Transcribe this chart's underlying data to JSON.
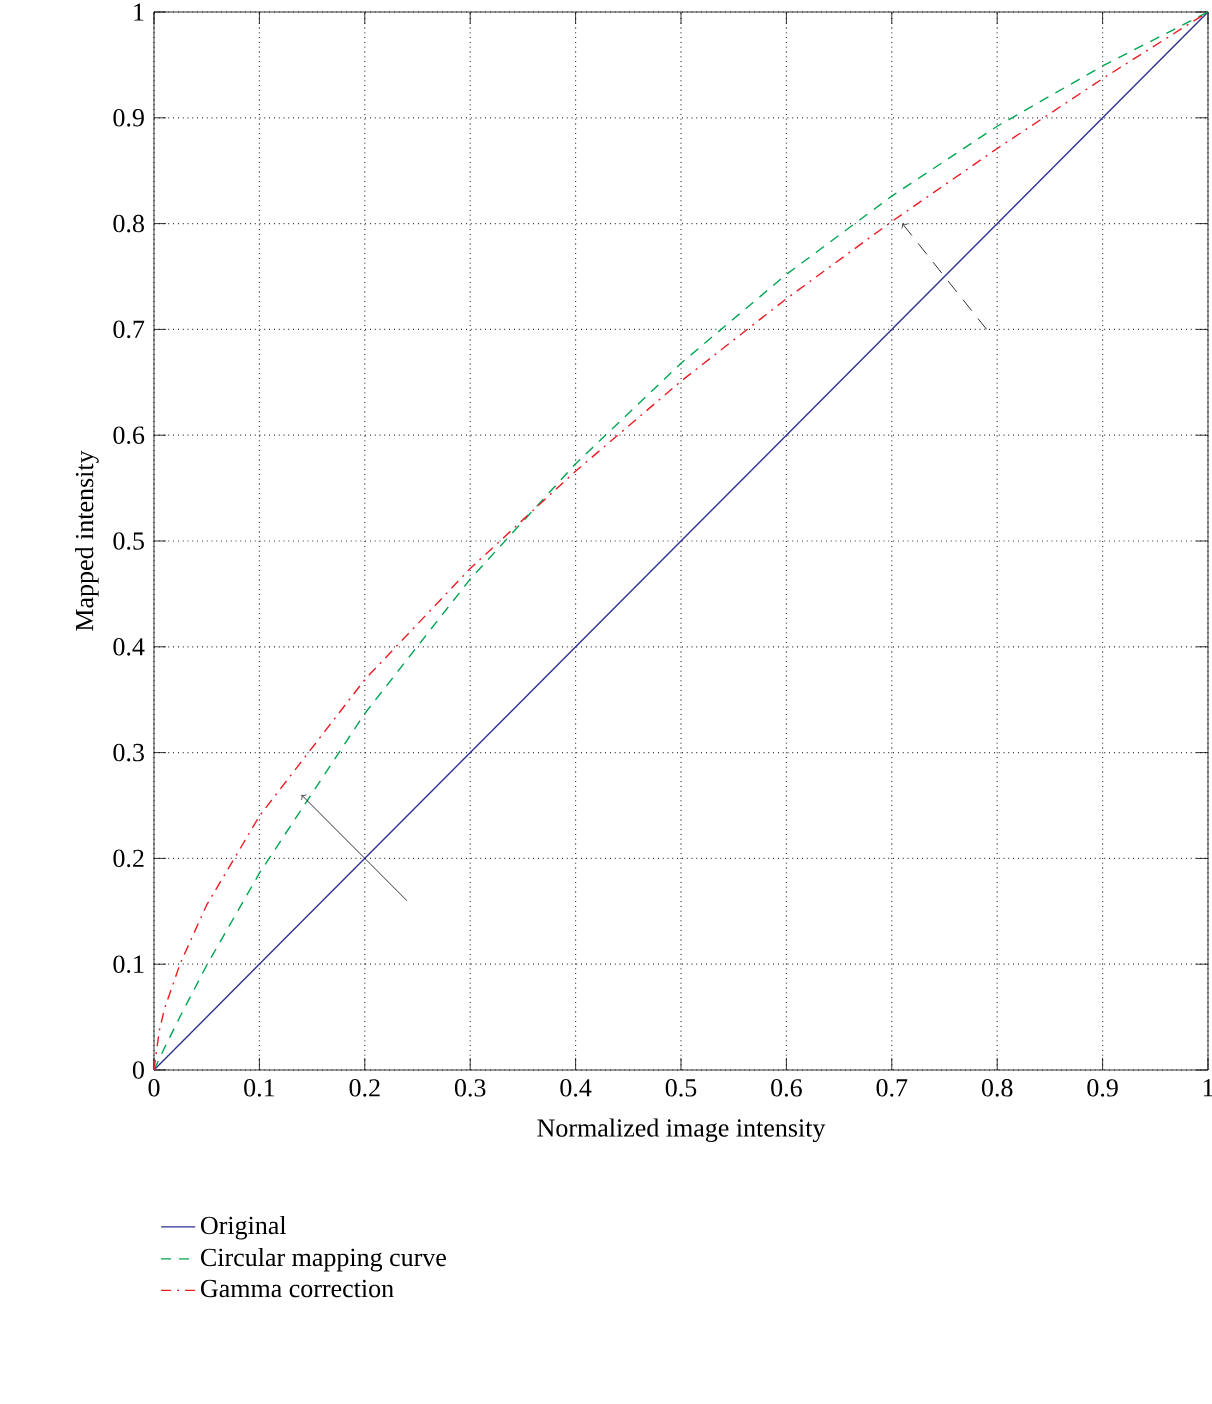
{
  "chart_data": {
    "type": "line",
    "xlabel": "Normalized image intensity",
    "ylabel": "Mapped intensity",
    "xlim": [
      0,
      1
    ],
    "ylim": [
      0,
      1
    ],
    "xticks": [
      0,
      0.1,
      0.2,
      0.3,
      0.4,
      0.5,
      0.6,
      0.7,
      0.8,
      0.9,
      1
    ],
    "yticks": [
      0,
      0.1,
      0.2,
      0.3,
      0.4,
      0.5,
      0.6,
      0.7,
      0.8,
      0.9,
      1
    ],
    "grid": true,
    "legend": "bottom",
    "marker": "none",
    "series": [
      {
        "name": "Original",
        "color": "#2e3192",
        "line_style": "solid",
        "x": [
          0,
          1
        ],
        "values": [
          0,
          1
        ]
      },
      {
        "name": "Circular mapping curve",
        "color": "#00a651",
        "line_style": "dashed",
        "x": [
          0,
          0.01,
          0.025,
          0.05,
          0.1,
          0.2,
          0.3,
          0.4,
          0.5,
          0.6,
          0.7,
          0.8,
          0.9,
          1
        ],
        "values": [
          0,
          0.021,
          0.051,
          0.099,
          0.186,
          0.337,
          0.464,
          0.573,
          0.668,
          0.752,
          0.826,
          0.892,
          0.949,
          1
        ]
      },
      {
        "name": "Gamma correction",
        "color": "#ed1c24",
        "line_style": "dashdot",
        "x": [
          0,
          0.005,
          0.01,
          0.025,
          0.05,
          0.1,
          0.2,
          0.3,
          0.4,
          0.5,
          0.6,
          0.7,
          0.8,
          0.9,
          1
        ],
        "values": [
          0,
          0.037,
          0.058,
          0.101,
          0.156,
          0.24,
          0.369,
          0.474,
          0.566,
          0.651,
          0.729,
          0.802,
          0.871,
          0.937,
          1
        ]
      }
    ]
  }
}
